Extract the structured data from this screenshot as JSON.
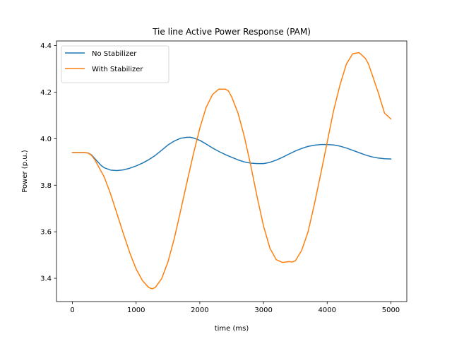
{
  "chart_data": {
    "type": "line",
    "title": "Tie line Active Power Response (PAM)",
    "xlabel": "time (ms)",
    "ylabel": "Power (p.u.)",
    "xlim": [
      -250,
      5250
    ],
    "ylim": [
      3.3,
      4.42
    ],
    "xticks": [
      0,
      1000,
      2000,
      3000,
      4000,
      5000
    ],
    "xtick_labels": [
      "0",
      "1000",
      "2000",
      "3000",
      "4000",
      "5000"
    ],
    "yticks": [
      3.4,
      3.6,
      3.8,
      4.0,
      4.2,
      4.4
    ],
    "ytick_labels": [
      "3.4",
      "3.6",
      "3.8",
      "4.0",
      "4.2",
      "4.4"
    ],
    "grid": false,
    "legend_position": "top-left",
    "series": [
      {
        "name": "No Stabilizer",
        "color": "#1f77b4",
        "x": [
          0,
          100,
          200,
          250,
          300,
          350,
          400,
          450,
          500,
          600,
          700,
          800,
          900,
          1000,
          1100,
          1200,
          1300,
          1400,
          1500,
          1600,
          1700,
          1800,
          1850,
          1900,
          2000,
          2100,
          2200,
          2300,
          2400,
          2500,
          2600,
          2700,
          2800,
          2900,
          3000,
          3100,
          3200,
          3300,
          3400,
          3500,
          3600,
          3700,
          3800,
          3900,
          4000,
          4100,
          4200,
          4300,
          4400,
          4500,
          4600,
          4700,
          4800,
          4900,
          5000
        ],
        "y": [
          3.94,
          3.94,
          3.94,
          3.938,
          3.93,
          3.915,
          3.9,
          3.885,
          3.875,
          3.865,
          3.863,
          3.866,
          3.873,
          3.883,
          3.895,
          3.91,
          3.928,
          3.95,
          3.973,
          3.99,
          4.002,
          4.006,
          4.006,
          4.003,
          3.993,
          3.977,
          3.96,
          3.945,
          3.932,
          3.92,
          3.909,
          3.9,
          3.895,
          3.893,
          3.893,
          3.898,
          3.908,
          3.92,
          3.934,
          3.947,
          3.958,
          3.967,
          3.972,
          3.975,
          3.975,
          3.973,
          3.968,
          3.96,
          3.95,
          3.94,
          3.93,
          3.922,
          3.917,
          3.914,
          3.913
        ]
      },
      {
        "name": "With Stabilizer",
        "color": "#ff7f0e",
        "x": [
          0,
          100,
          200,
          250,
          300,
          350,
          400,
          500,
          600,
          700,
          800,
          900,
          1000,
          1100,
          1200,
          1250,
          1300,
          1400,
          1500,
          1600,
          1700,
          1800,
          1900,
          2000,
          2100,
          2200,
          2300,
          2400,
          2450,
          2500,
          2600,
          2700,
          2800,
          2900,
          3000,
          3100,
          3200,
          3300,
          3400,
          3450,
          3500,
          3600,
          3700,
          3800,
          3900,
          4000,
          4100,
          4200,
          4300,
          4400,
          4500,
          4600,
          4650,
          4700,
          4800,
          4900,
          5000
        ],
        "y": [
          3.94,
          3.94,
          3.94,
          3.938,
          3.928,
          3.91,
          3.885,
          3.835,
          3.762,
          3.677,
          3.592,
          3.51,
          3.44,
          3.39,
          3.36,
          3.355,
          3.36,
          3.398,
          3.47,
          3.572,
          3.692,
          3.815,
          3.935,
          4.045,
          4.135,
          4.19,
          4.213,
          4.213,
          4.205,
          4.18,
          4.11,
          4.008,
          3.885,
          3.75,
          3.625,
          3.53,
          3.48,
          3.468,
          3.472,
          3.47,
          3.475,
          3.52,
          3.6,
          3.72,
          3.85,
          3.985,
          4.12,
          4.23,
          4.32,
          4.365,
          4.37,
          4.345,
          4.32,
          4.28,
          4.2,
          4.11,
          4.085
        ]
      }
    ]
  }
}
